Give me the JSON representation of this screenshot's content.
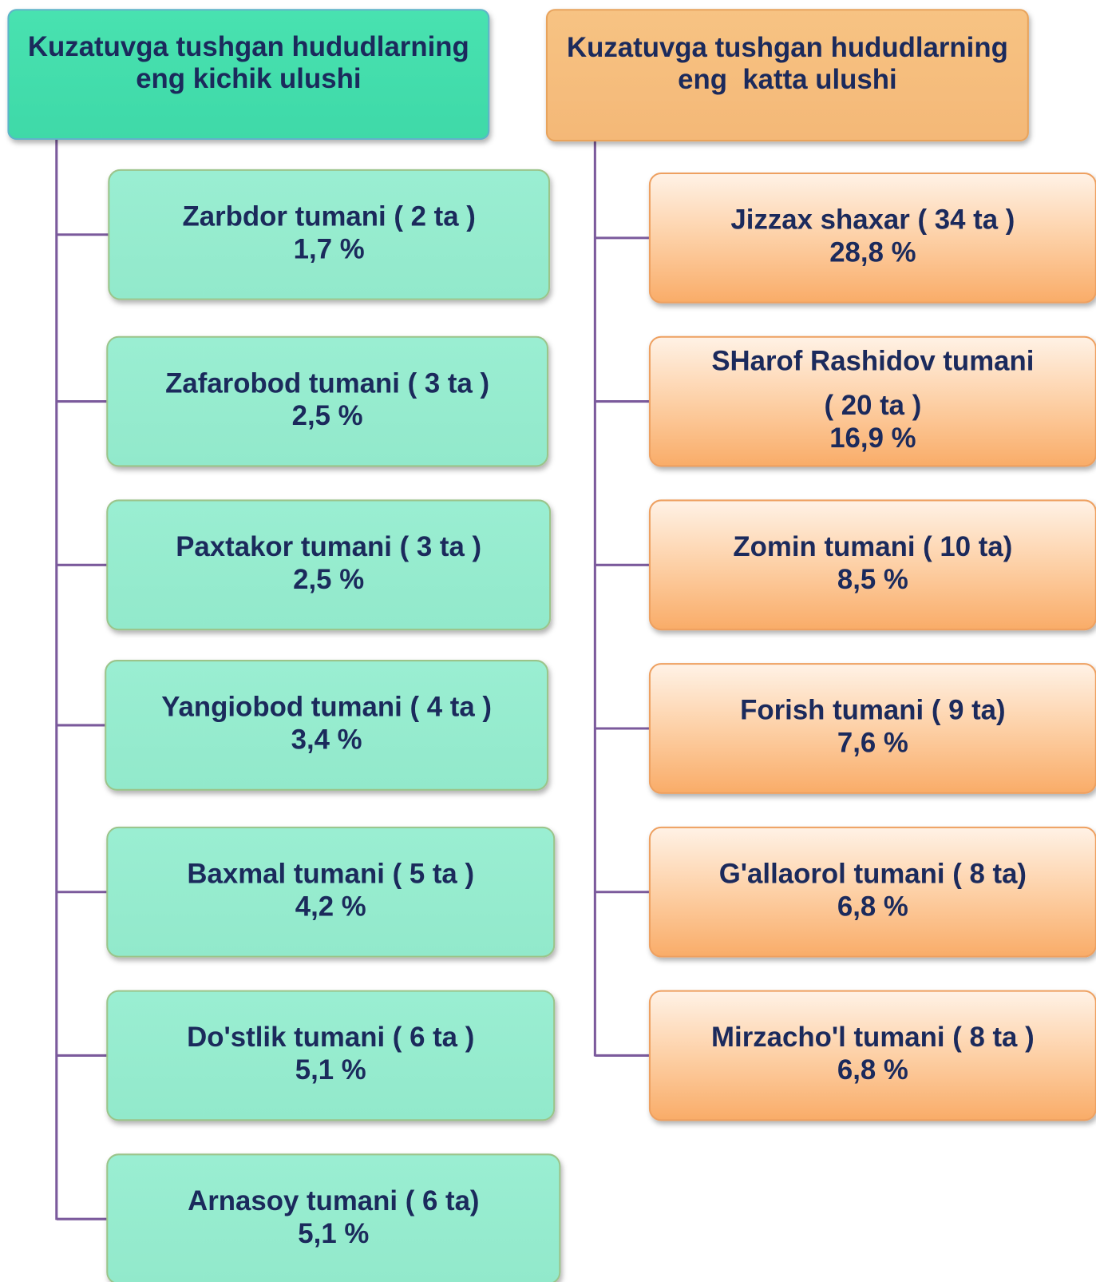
{
  "left": {
    "title": [
      "Kuzatuvga tushgan hududlarning",
      "eng kichik ulushi"
    ],
    "items": [
      {
        "lines": [
          "Zarbdor tumani ( 2 ta )",
          "1,7 %"
        ]
      },
      {
        "lines": [
          "Zafarobod tumani ( 3 ta )",
          "2,5 %"
        ]
      },
      {
        "lines": [
          "Paxtakor tumani ( 3 ta )",
          "2,5 %"
        ]
      },
      {
        "lines": [
          "Yangiobod tumani ( 4 ta )",
          "3,4 %"
        ]
      },
      {
        "lines": [
          "Baxmal tumani ( 5 ta )",
          "4,2 %"
        ]
      },
      {
        "lines": [
          "Do'stlik tumani ( 6 ta )",
          "5,1 %"
        ]
      },
      {
        "lines": [
          "Arnasoy tumani ( 6 ta)",
          "5,1 %"
        ]
      }
    ]
  },
  "right": {
    "title": [
      "Kuzatuvga tushgan hududlarning",
      "eng  katta ulushi"
    ],
    "items": [
      {
        "lines": [
          "Jizzax shaxar ( 34 ta )",
          "28,8 %"
        ]
      },
      {
        "lines": [
          "SHarof Rashidov tumani",
          "( 20 ta )",
          "16,9 %"
        ]
      },
      {
        "lines": [
          "Zomin tumani ( 10 ta)",
          "8,5 %"
        ]
      },
      {
        "lines": [
          "Forish tumani ( 9 ta)",
          "7,6 %"
        ]
      },
      {
        "lines": [
          "G'allaorol tumani ( 8 ta)",
          "6,8 %"
        ]
      },
      {
        "lines": [
          "Mirzacho'l tumani ( 8 ta )",
          "6,8 %"
        ]
      }
    ]
  }
}
